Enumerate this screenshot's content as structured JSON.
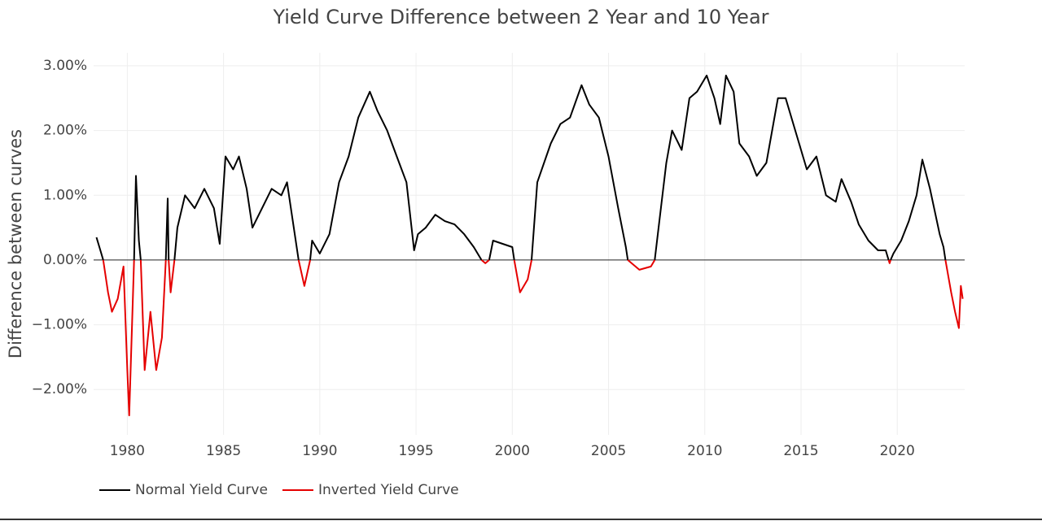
{
  "chart_data": {
    "type": "line",
    "title": "Yield Curve Difference between 2 Year and 10 Year",
    "y_label": "Difference between curves",
    "xlim": [
      1978.25,
      2023.5
    ],
    "ylim": [
      -2.7,
      3.2
    ],
    "xticks": [
      1980,
      1985,
      1990,
      1995,
      2000,
      2005,
      2010,
      2015,
      2020
    ],
    "yticks": [
      {
        "value": -2,
        "label": "−2.00%"
      },
      {
        "value": -1,
        "label": "−1.00%"
      },
      {
        "value": 0,
        "label": "0.00%"
      },
      {
        "value": 1,
        "label": "1.00%"
      },
      {
        "value": 2,
        "label": "2.00%"
      },
      {
        "value": 3,
        "label": "3.00%"
      }
    ],
    "grid": true,
    "legend_position": "bottom-left",
    "x": [
      1978.4,
      1978.6,
      1978.75,
      1979.0,
      1979.2,
      1979.5,
      1979.8,
      1980.0,
      1980.1,
      1980.35,
      1980.45,
      1980.6,
      1980.7,
      1980.9,
      1981.2,
      1981.5,
      1981.8,
      1982.0,
      1982.1,
      1982.15,
      1982.25,
      1982.45,
      1982.6,
      1983.0,
      1983.5,
      1984.0,
      1984.5,
      1984.8,
      1985.1,
      1985.5,
      1985.8,
      1986.2,
      1986.5,
      1987.0,
      1987.5,
      1988.0,
      1988.3,
      1988.6,
      1988.9,
      1989.2,
      1989.5,
      1989.6,
      1990.0,
      1990.5,
      1991.0,
      1991.5,
      1992.0,
      1992.6,
      1993.0,
      1993.5,
      1994.0,
      1994.5,
      1994.9,
      1995.1,
      1995.5,
      1996.0,
      1996.5,
      1997.0,
      1997.5,
      1998.0,
      1998.4,
      1998.6,
      1998.8,
      1999.0,
      1999.5,
      2000.0,
      2000.1,
      2000.4,
      2000.8,
      2001.0,
      2001.3,
      2002.0,
      2002.5,
      2003.0,
      2003.6,
      2004.0,
      2004.5,
      2005.0,
      2005.5,
      2005.9,
      2006.0,
      2006.6,
      2007.2,
      2007.4,
      2007.6,
      2008.0,
      2008.3,
      2008.8,
      2009.2,
      2009.6,
      2010.1,
      2010.5,
      2010.8,
      2011.1,
      2011.5,
      2011.8,
      2012.3,
      2012.7,
      2013.2,
      2013.8,
      2014.2,
      2014.8,
      2015.3,
      2015.8,
      2016.3,
      2016.8,
      2017.1,
      2017.6,
      2018.0,
      2018.5,
      2019.0,
      2019.4,
      2019.55,
      2019.6,
      2019.65,
      2019.8,
      2020.2,
      2020.6,
      2021.0,
      2021.3,
      2021.7,
      2022.2,
      2022.4,
      2022.5,
      2022.8,
      2023.0,
      2023.2,
      2023.3,
      2023.4
    ],
    "series": [
      {
        "name": "Normal Yield Curve",
        "color": "#000000",
        "values": [
          0.35,
          0.15,
          0,
          null,
          null,
          null,
          null,
          null,
          null,
          0,
          1.3,
          0.3,
          0,
          null,
          null,
          null,
          null,
          0,
          0.95,
          0,
          null,
          0,
          0.5,
          1.0,
          0.8,
          1.1,
          0.8,
          0.25,
          1.6,
          1.4,
          1.6,
          1.1,
          0.5,
          0.8,
          1.1,
          1.0,
          1.2,
          0.6,
          0,
          null,
          0,
          0.3,
          0.1,
          0.4,
          1.2,
          1.6,
          2.2,
          2.6,
          2.3,
          2.0,
          1.6,
          1.2,
          0.15,
          0.4,
          0.5,
          0.7,
          0.6,
          0.55,
          0.4,
          0.2,
          0,
          null,
          0,
          0.3,
          0.25,
          0.2,
          0,
          null,
          null,
          0,
          1.2,
          1.8,
          2.1,
          2.2,
          2.7,
          2.4,
          2.2,
          1.6,
          0.8,
          0.2,
          0,
          null,
          null,
          0,
          0.5,
          1.5,
          2.0,
          1.7,
          2.5,
          2.6,
          2.85,
          2.5,
          2.1,
          2.85,
          2.6,
          1.8,
          1.6,
          1.3,
          1.5,
          2.5,
          2.5,
          1.9,
          1.4,
          1.6,
          1.0,
          0.9,
          1.25,
          0.9,
          0.55,
          0.3,
          0.15,
          0.15,
          0,
          null,
          0,
          0.1,
          0.3,
          0.6,
          1.0,
          1.55,
          1.1,
          0.4,
          0.2,
          0,
          null,
          null,
          null,
          null,
          null
        ]
      },
      {
        "name": "Inverted Yield Curve",
        "color": "#e50000",
        "values": [
          null,
          null,
          0,
          -0.5,
          -0.8,
          -0.6,
          -0.1,
          -1.7,
          -2.4,
          0,
          null,
          null,
          0,
          -1.7,
          -0.8,
          -1.7,
          -1.2,
          0,
          null,
          0,
          -0.5,
          0,
          null,
          null,
          null,
          null,
          null,
          null,
          null,
          null,
          null,
          null,
          null,
          null,
          null,
          null,
          null,
          null,
          0,
          -0.4,
          0,
          null,
          null,
          null,
          null,
          null,
          null,
          null,
          null,
          null,
          null,
          null,
          null,
          null,
          null,
          null,
          null,
          null,
          null,
          null,
          0,
          -0.05,
          0,
          null,
          null,
          null,
          0,
          -0.5,
          -0.3,
          0,
          null,
          null,
          null,
          null,
          null,
          null,
          null,
          null,
          null,
          null,
          0,
          -0.15,
          -0.1,
          0,
          null,
          null,
          null,
          null,
          null,
          null,
          null,
          null,
          null,
          null,
          null,
          null,
          null,
          null,
          null,
          null,
          null,
          null,
          null,
          null,
          null,
          null,
          null,
          null,
          null,
          null,
          null,
          null,
          0,
          -0.05,
          0,
          null,
          null,
          null,
          null,
          null,
          null,
          null,
          null,
          0,
          -0.5,
          -0.8,
          -1.05,
          -0.4,
          -0.6
        ]
      }
    ]
  }
}
